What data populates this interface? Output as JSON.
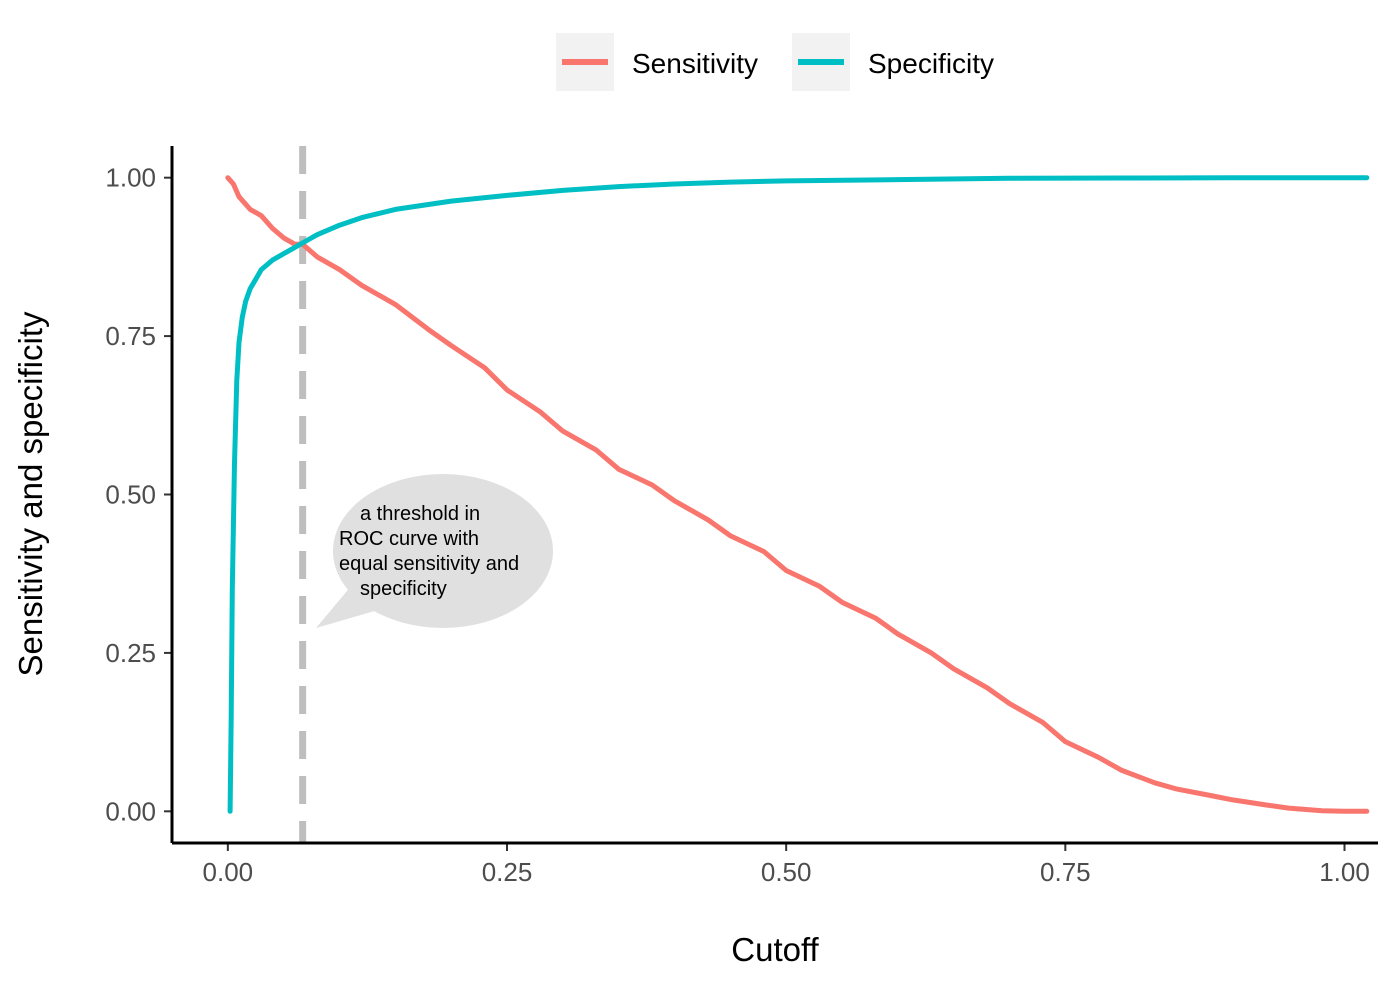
{
  "chart_data": {
    "type": "line",
    "xlabel": "Cutoff",
    "ylabel": "Sensitivity and specificity",
    "xlim": [
      -0.05,
      1.03
    ],
    "ylim": [
      -0.05,
      1.05
    ],
    "x_ticks": [
      "0.00",
      "0.25",
      "0.50",
      "0.75",
      "1.00"
    ],
    "y_ticks": [
      "0.00",
      "0.25",
      "0.50",
      "0.75",
      "1.00"
    ],
    "grid": false,
    "legend_position": "top",
    "series": [
      {
        "name": "Sensitivity",
        "color": "#F8766D",
        "x": [
          0.0,
          0.005,
          0.01,
          0.02,
          0.03,
          0.04,
          0.05,
          0.06,
          0.067,
          0.08,
          0.1,
          0.12,
          0.15,
          0.18,
          0.2,
          0.23,
          0.25,
          0.28,
          0.3,
          0.33,
          0.35,
          0.38,
          0.4,
          0.43,
          0.45,
          0.48,
          0.5,
          0.53,
          0.55,
          0.58,
          0.6,
          0.63,
          0.65,
          0.68,
          0.7,
          0.73,
          0.75,
          0.78,
          0.8,
          0.83,
          0.85,
          0.88,
          0.9,
          0.93,
          0.95,
          0.98,
          1.0,
          1.02
        ],
        "values": [
          1.0,
          0.99,
          0.97,
          0.95,
          0.94,
          0.92,
          0.905,
          0.895,
          0.895,
          0.875,
          0.855,
          0.83,
          0.8,
          0.76,
          0.735,
          0.7,
          0.665,
          0.63,
          0.6,
          0.57,
          0.54,
          0.515,
          0.49,
          0.46,
          0.435,
          0.41,
          0.38,
          0.355,
          0.33,
          0.305,
          0.28,
          0.25,
          0.225,
          0.195,
          0.17,
          0.14,
          0.11,
          0.085,
          0.065,
          0.045,
          0.035,
          0.025,
          0.018,
          0.01,
          0.005,
          0.001,
          0.0,
          0.0
        ]
      },
      {
        "name": "Specificity",
        "color": "#00BFC4",
        "x": [
          0.002,
          0.003,
          0.004,
          0.006,
          0.008,
          0.01,
          0.013,
          0.016,
          0.02,
          0.025,
          0.03,
          0.04,
          0.05,
          0.06,
          0.07,
          0.08,
          0.1,
          0.12,
          0.15,
          0.2,
          0.25,
          0.3,
          0.35,
          0.4,
          0.45,
          0.5,
          0.6,
          0.7,
          0.8,
          0.9,
          1.0,
          1.02
        ],
        "values": [
          0.0,
          0.15,
          0.35,
          0.55,
          0.68,
          0.74,
          0.78,
          0.805,
          0.825,
          0.84,
          0.855,
          0.87,
          0.88,
          0.89,
          0.9,
          0.91,
          0.925,
          0.937,
          0.95,
          0.963,
          0.972,
          0.98,
          0.986,
          0.99,
          0.993,
          0.995,
          0.997,
          0.999,
          0.9995,
          1.0,
          1.0,
          1.0
        ]
      }
    ],
    "vline": {
      "x": 0.067,
      "color": "#BEBEBE"
    },
    "annotation": {
      "lines": [
        "a threshold in",
        "ROC curve with",
        "equal sensitivity and",
        "specificity"
      ],
      "fill": "#E0E0E0"
    }
  }
}
